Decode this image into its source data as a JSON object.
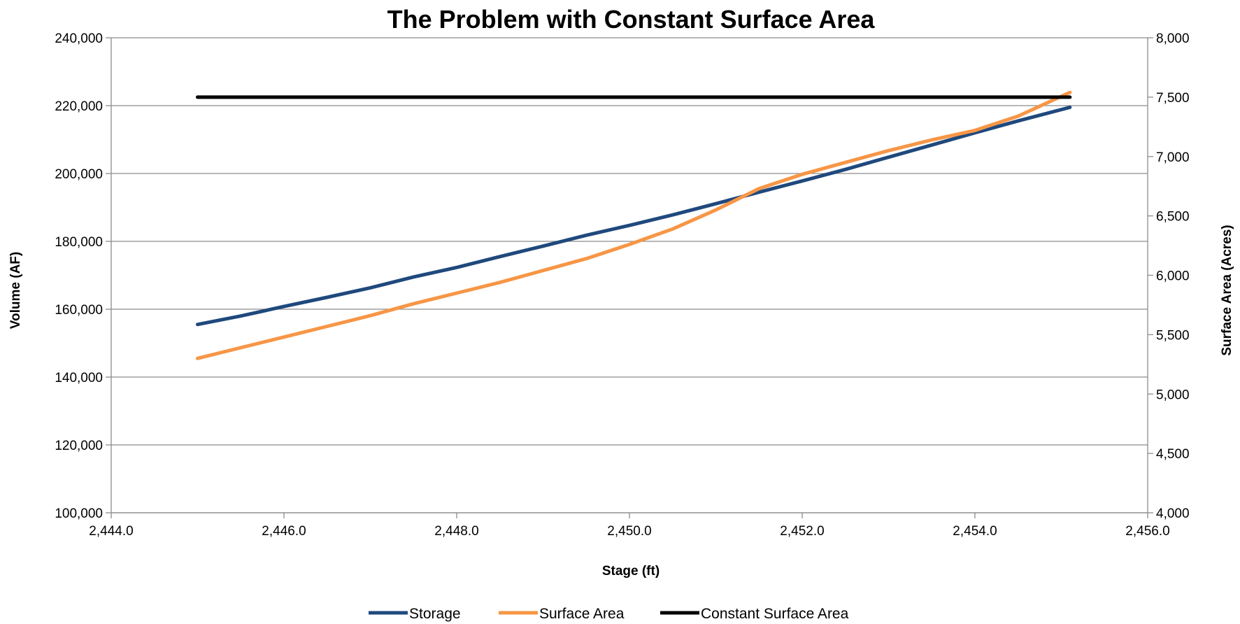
{
  "chart_data": {
    "type": "line",
    "title": "The Problem with Constant Surface Area",
    "xlabel": "Stage (ft)",
    "ylabel": "Volume (AF)",
    "y2label": "Surface Area (Acres)",
    "xlim": [
      2444,
      2456
    ],
    "ylim": [
      100000,
      240000
    ],
    "y2lim": [
      4000,
      8000
    ],
    "x_ticks": [
      "2,444.0",
      "2,446.0",
      "2,448.0",
      "2,450.0",
      "2,452.0",
      "2,454.0",
      "2,456.0"
    ],
    "y_ticks": [
      "100,000",
      "120,000",
      "140,000",
      "160,000",
      "180,000",
      "200,000",
      "220,000",
      "240,000"
    ],
    "y2_ticks": [
      "4,000",
      "4,500",
      "5,000",
      "5,500",
      "6,000",
      "6,500",
      "7,000",
      "7,500",
      "8,000"
    ],
    "grid": true,
    "legend_position": "bottom",
    "series": [
      {
        "name": "Storage",
        "axis": "left",
        "color": "#1f497d",
        "x": [
          2445.0,
          2445.5,
          2446.0,
          2446.5,
          2447.0,
          2447.5,
          2448.0,
          2448.5,
          2449.0,
          2449.5,
          2450.0,
          2450.5,
          2451.0,
          2451.5,
          2452.0,
          2452.5,
          2453.0,
          2453.5,
          2454.0,
          2454.5,
          2455.1
        ],
        "values": [
          155500,
          158000,
          160800,
          163500,
          166300,
          169500,
          172300,
          175500,
          178600,
          181800,
          184700,
          187800,
          191100,
          194500,
          197800,
          201200,
          204800,
          208400,
          212000,
          215500,
          219500
        ]
      },
      {
        "name": "Surface Area",
        "axis": "right",
        "color": "#f79646",
        "x": [
          2445.0,
          2445.5,
          2446.0,
          2446.5,
          2447.0,
          2447.5,
          2448.0,
          2448.5,
          2449.0,
          2449.5,
          2450.0,
          2450.5,
          2451.0,
          2451.5,
          2452.0,
          2452.5,
          2453.0,
          2453.5,
          2454.0,
          2454.5,
          2455.1
        ],
        "values": [
          5300,
          5390,
          5480,
          5570,
          5660,
          5760,
          5850,
          5940,
          6040,
          6140,
          6260,
          6390,
          6550,
          6730,
          6850,
          6950,
          7050,
          7140,
          7220,
          7340,
          7540
        ]
      },
      {
        "name": "Constant Surface Area",
        "axis": "right",
        "color": "#000000",
        "x": [
          2445.0,
          2455.1
        ],
        "values": [
          7500,
          7500
        ]
      }
    ]
  }
}
